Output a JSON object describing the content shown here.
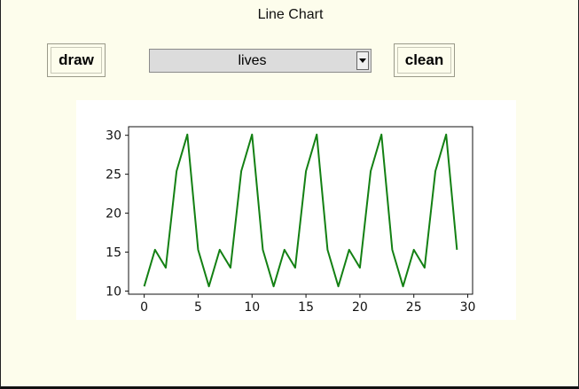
{
  "window": {
    "title": "Line Chart"
  },
  "toolbar": {
    "draw_label": "draw",
    "clean_label": "clean",
    "series_select": {
      "selected": "lives"
    }
  },
  "chart_data": {
    "type": "line",
    "title": "",
    "xlabel": "",
    "ylabel": "",
    "x": [
      0,
      1,
      2,
      3,
      4,
      5,
      6,
      7,
      8,
      9,
      10,
      11,
      12,
      13,
      14,
      15,
      16,
      17,
      18,
      19,
      20,
      21,
      22,
      23,
      24,
      25,
      26,
      27,
      28,
      29
    ],
    "series": [
      {
        "values": [
          10.6,
          15.3,
          13.0,
          25.4,
          30.1,
          15.3,
          10.6,
          15.3,
          13.0,
          25.4,
          30.1,
          15.3,
          10.6,
          15.3,
          13.0,
          25.4,
          30.1,
          15.3,
          10.6,
          15.3,
          13.0,
          25.4,
          30.1,
          15.3,
          10.6,
          15.3,
          13.0,
          25.4,
          30.1,
          15.3
        ],
        "color": "#138013"
      }
    ],
    "xlim": [
      -1.45,
      30.45
    ],
    "ylim": [
      9.6,
      31.1
    ],
    "x_ticks": [
      0,
      5,
      10,
      15,
      20,
      25,
      30
    ],
    "y_ticks": [
      10,
      15,
      20,
      25,
      30
    ],
    "grid": false,
    "legend": "none"
  }
}
